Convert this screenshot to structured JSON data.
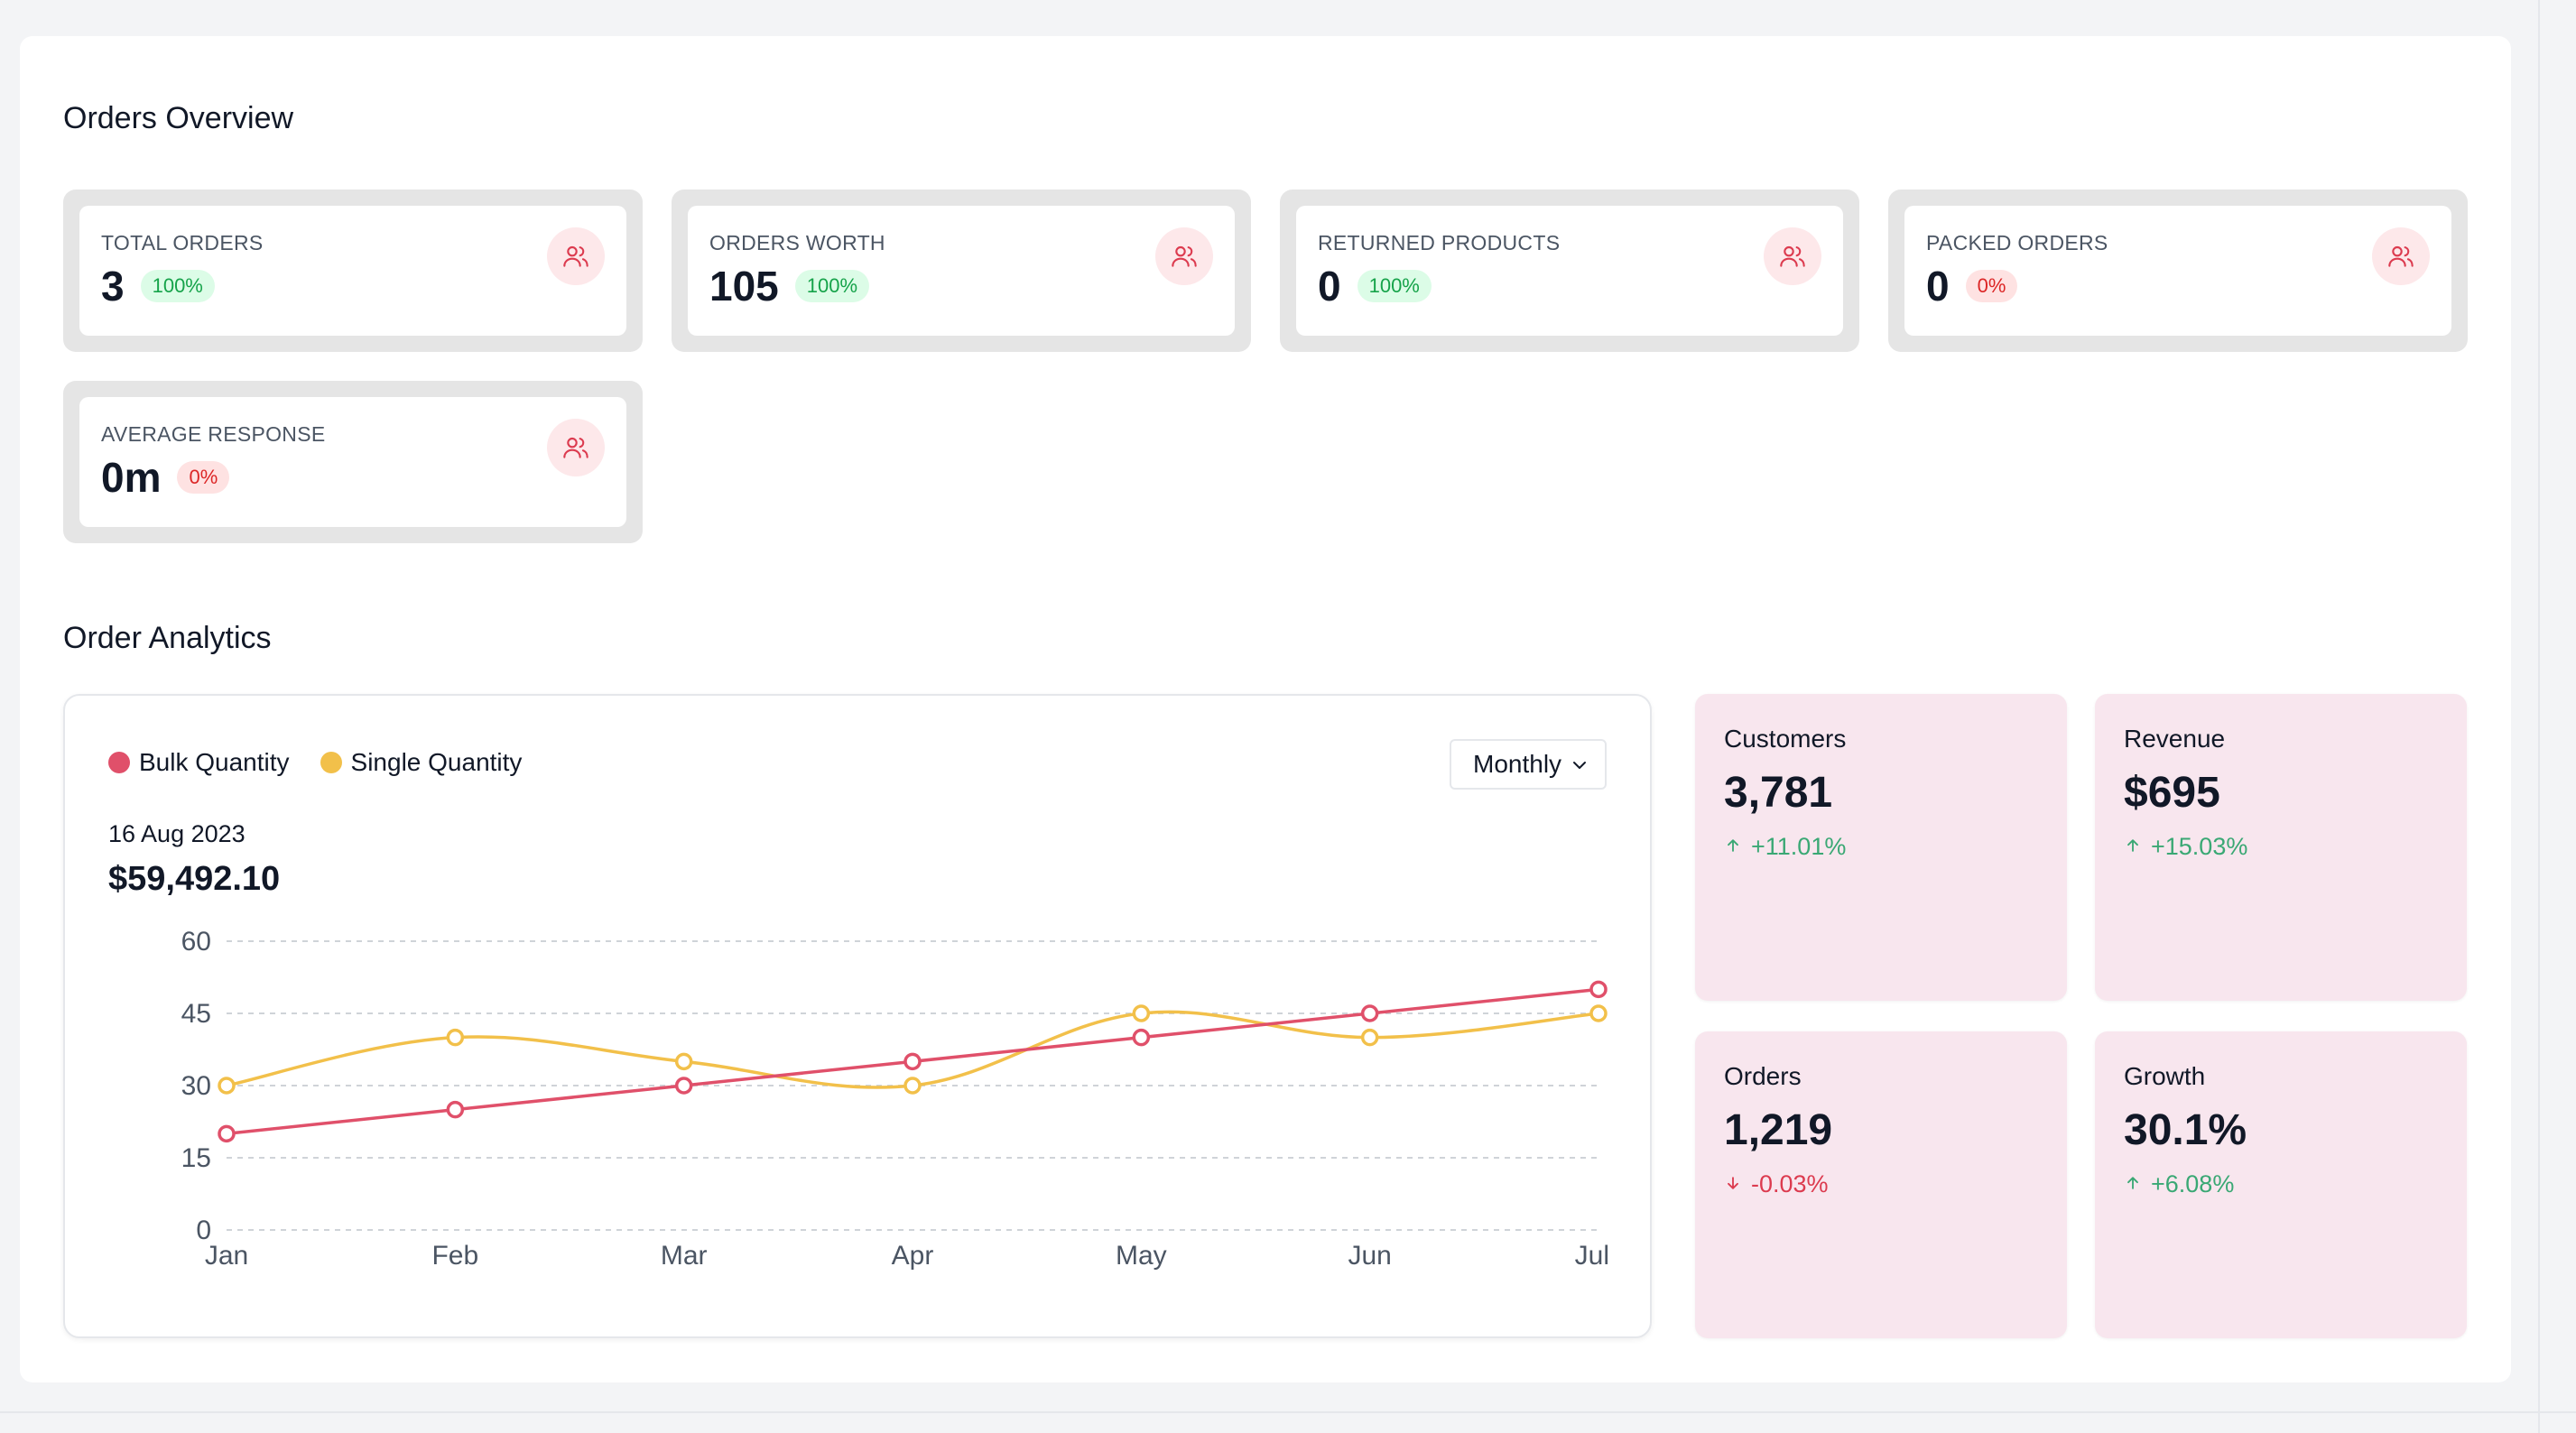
{
  "overview": {
    "title": "Orders Overview",
    "cards": [
      {
        "label": "TOTAL ORDERS",
        "value": "3",
        "badge": "100%",
        "trend": "up",
        "icon": "users-icon"
      },
      {
        "label": "ORDERS WORTH",
        "value": "105",
        "badge": "100%",
        "trend": "up",
        "icon": "users-icon"
      },
      {
        "label": "RETURNED PRODUCTS",
        "value": "0",
        "badge": "100%",
        "trend": "up",
        "icon": "users-icon"
      },
      {
        "label": "PACKED ORDERS",
        "value": "0",
        "badge": "0%",
        "trend": "down",
        "icon": "users-icon"
      },
      {
        "label": "AVERAGE RESPONSE",
        "value": "0m",
        "badge": "0%",
        "trend": "down",
        "icon": "users-icon"
      }
    ]
  },
  "analytics": {
    "title": "Order Analytics",
    "period_select": {
      "value": "Monthly"
    },
    "date": "16 Aug 2023",
    "amount": "$59,492.10"
  },
  "chart_data": {
    "type": "line",
    "x": [
      "Jan",
      "Feb",
      "Mar",
      "Apr",
      "May",
      "Jun",
      "Jul"
    ],
    "ylim": [
      0,
      60
    ],
    "yticks": [
      0,
      15,
      30,
      45,
      60
    ],
    "grid": true,
    "legend_position": "top-left",
    "smooth": true,
    "series": [
      {
        "name": "Bulk Quantity",
        "color": "#e0506a",
        "values": [
          20,
          25,
          30,
          35,
          40,
          45,
          50
        ]
      },
      {
        "name": "Single Quantity",
        "color": "#f2c04a",
        "values": [
          30,
          40,
          35,
          30,
          45,
          40,
          45
        ]
      }
    ]
  },
  "kpis": [
    {
      "label": "Customers",
      "value": "3,781",
      "change": "+11.01%",
      "trend": "up",
      "icon": "arrow-up-icon"
    },
    {
      "label": "Revenue",
      "value": "$695",
      "change": "+15.03%",
      "trend": "up",
      "icon": "arrow-up-icon"
    },
    {
      "label": "Orders",
      "value": "1,219",
      "change": "-0.03%",
      "trend": "down",
      "icon": "arrow-down-icon"
    },
    {
      "label": "Growth",
      "value": "30.1%",
      "change": "+6.08%",
      "trend": "up",
      "icon": "arrow-up-icon"
    }
  ],
  "colors": {
    "accent_pink": "#f8e6ee",
    "icon_red": "#dc3b4f",
    "up_green": "#16a34a",
    "down_red": "#dc2626"
  }
}
